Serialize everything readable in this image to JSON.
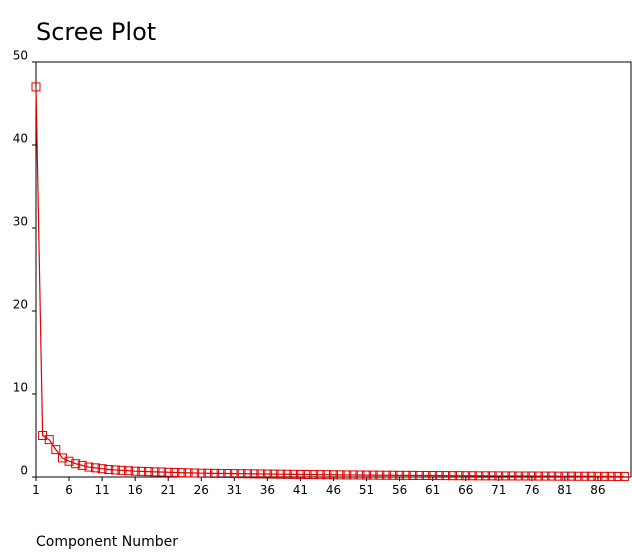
{
  "chart_data": {
    "type": "line",
    "title": "Scree Plot",
    "x_label": "Component Number",
    "x": [
      1,
      2,
      3,
      4,
      5,
      6,
      7,
      8,
      9,
      10,
      11,
      12,
      13,
      14,
      15,
      16,
      17,
      18,
      19,
      20,
      21,
      22,
      23,
      24,
      25,
      26,
      27,
      28,
      29,
      30,
      31,
      32,
      33,
      34,
      35,
      36,
      37,
      38,
      39,
      40,
      41,
      42,
      43,
      44,
      45,
      46,
      47,
      48,
      49,
      50,
      51,
      52,
      53,
      54,
      55,
      56,
      57,
      58,
      59,
      60,
      61,
      62,
      63,
      64,
      65,
      66,
      67,
      68,
      69,
      70,
      71,
      72,
      73,
      74,
      75,
      76,
      77,
      78,
      79,
      80,
      81,
      82,
      83,
      84,
      85,
      86,
      87,
      88,
      89,
      90
    ],
    "values": [
      47,
      5,
      4.5,
      3.3,
      2.3,
      1.9,
      1.6,
      1.4,
      1.2,
      1.1,
      1.0,
      0.9,
      0.85,
      0.8,
      0.75,
      0.7,
      0.68,
      0.65,
      0.62,
      0.6,
      0.57,
      0.55,
      0.52,
      0.5,
      0.48,
      0.46,
      0.45,
      0.44,
      0.43,
      0.42,
      0.41,
      0.4,
      0.39,
      0.38,
      0.37,
      0.36,
      0.35,
      0.34,
      0.33,
      0.32,
      0.31,
      0.3,
      0.29,
      0.28,
      0.28,
      0.27,
      0.26,
      0.25,
      0.25,
      0.24,
      0.23,
      0.23,
      0.22,
      0.21,
      0.21,
      0.2,
      0.2,
      0.19,
      0.19,
      0.18,
      0.18,
      0.17,
      0.17,
      0.16,
      0.16,
      0.15,
      0.15,
      0.14,
      0.14,
      0.14,
      0.13,
      0.13,
      0.13,
      0.12,
      0.12,
      0.12,
      0.11,
      0.11,
      0.11,
      0.1,
      0.1,
      0.1,
      0.09,
      0.09,
      0.09,
      0.08,
      0.08,
      0.08,
      0.07,
      0.07
    ],
    "color": "#e00000",
    "xlim": [
      1,
      91
    ],
    "xticks": [
      1,
      6,
      11,
      16,
      21,
      26,
      31,
      36,
      41,
      46,
      51,
      56,
      61,
      66,
      71,
      76,
      81,
      86
    ],
    "ylim": [
      0,
      50
    ],
    "yticks": [
      0,
      10,
      20,
      30,
      40,
      50
    ]
  }
}
